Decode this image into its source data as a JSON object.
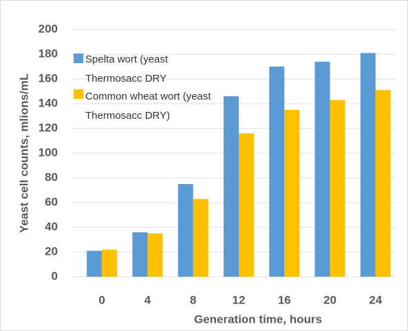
{
  "chart_data": {
    "type": "bar",
    "categories": [
      "0",
      "4",
      "8",
      "12",
      "16",
      "20",
      "24"
    ],
    "series": [
      {
        "name": "Spelta wort (yeast Thermosacc DRY",
        "color": "#5b9bd5",
        "values": [
          21,
          36,
          75,
          146,
          170,
          174,
          181
        ]
      },
      {
        "name": "Common wheat wort (yeast Thermosacc DRY)",
        "color": "#ffc000",
        "values": [
          22,
          35,
          63,
          116,
          135,
          143,
          151
        ]
      }
    ],
    "x_label": "Generation time, hours",
    "y_label": "Yeast cell counts, mlions/mL",
    "ylim": [
      0,
      200
    ],
    "yticks": [
      0,
      20,
      40,
      60,
      80,
      100,
      120,
      140,
      160,
      180,
      200
    ],
    "grid": true,
    "legend": "top-left"
  }
}
